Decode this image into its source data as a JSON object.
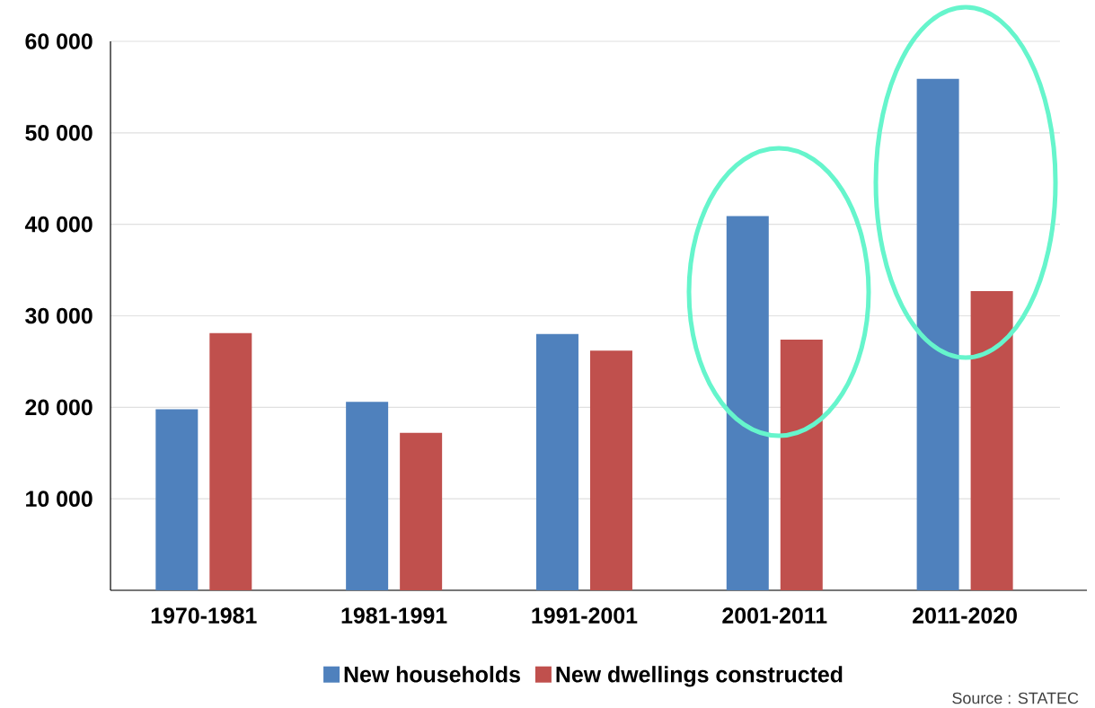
{
  "chart_data": {
    "type": "bar",
    "categories": [
      "1970-1981",
      "1981-1991",
      "1991-2001",
      "2001-2011",
      "2011-2020"
    ],
    "series": [
      {
        "name": "New households",
        "color": "#4f81bd",
        "values": [
          19800,
          20600,
          28000,
          40900,
          55900
        ]
      },
      {
        "name": "New dwellings constructed",
        "color": "#c0504d",
        "values": [
          28100,
          17200,
          26200,
          27400,
          32700
        ]
      }
    ],
    "ylim": [
      0,
      60000
    ],
    "yticks": [
      {
        "value": 0,
        "label": null
      },
      {
        "value": 10000,
        "label": "10 000"
      },
      {
        "value": 20000,
        "label": "20 000"
      },
      {
        "value": 30000,
        "label": "30 000"
      },
      {
        "value": 40000,
        "label": "40 000"
      },
      {
        "value": 50000,
        "label": "50 000"
      },
      {
        "value": 60000,
        "label": "60 000"
      }
    ],
    "grid": "y",
    "legend": "bottom",
    "annotations": [
      "Source : STATEC"
    ]
  }
}
